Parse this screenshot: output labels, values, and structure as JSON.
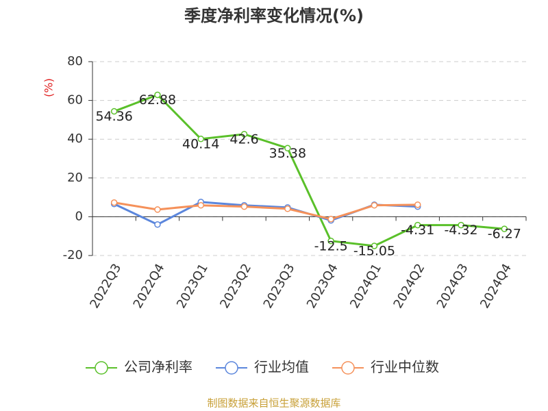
{
  "chart_data": {
    "type": "line",
    "title": "季度净利率变化情况(%)",
    "y_label": "(%)",
    "source": "制图数据来自恒生聚源数据库",
    "categories": [
      "2022Q3",
      "2022Q4",
      "2023Q1",
      "2023Q2",
      "2023Q3",
      "2023Q4",
      "2024Q1",
      "2024Q2",
      "2024Q3",
      "2024Q4"
    ],
    "series": [
      {
        "name": "公司净利率",
        "color": "#5ac02a",
        "values": [
          54.36,
          62.88,
          40.14,
          42.6,
          35.38,
          -12.5,
          -15.05,
          -4.31,
          -4.32,
          -6.27
        ],
        "show_labels": true
      },
      {
        "name": "行业均值",
        "color": "#5b86dc",
        "values": [
          6.6,
          -4,
          7.6,
          5.9,
          4.8,
          -1.9,
          6.2,
          5.2,
          null,
          null
        ]
      },
      {
        "name": "行业中位数",
        "color": "#f5915a",
        "values": [
          7.3,
          3.7,
          5.9,
          5.2,
          4.1,
          -1.2,
          5.9,
          6.2,
          null,
          null
        ]
      }
    ],
    "ylim": [
      -20,
      80
    ],
    "yticks": [
      -20,
      0,
      20,
      40,
      60,
      80
    ],
    "grid": true,
    "legend": "bottom"
  }
}
